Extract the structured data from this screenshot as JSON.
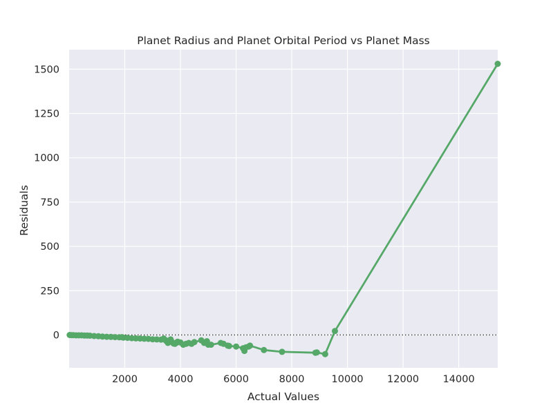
{
  "chart_data": {
    "type": "line",
    "title": "Planet Radius and Planet Orbital Period vs Planet Mass",
    "xlabel": "Actual Values",
    "ylabel": "Residuals",
    "xlim": [
      0,
      15400
    ],
    "ylim": [
      -185,
      1610
    ],
    "x_ticks": [
      2000,
      4000,
      6000,
      8000,
      10000,
      12000,
      14000
    ],
    "y_ticks": [
      0,
      250,
      500,
      750,
      1000,
      1250,
      1500
    ],
    "x_tick_labels": [
      "2000",
      "4000",
      "6000",
      "8000",
      "10000",
      "12000",
      "14000"
    ],
    "y_tick_labels": [
      "0",
      "250",
      "500",
      "750",
      "1000",
      "1250",
      "1500"
    ],
    "grid": true,
    "reference_line": {
      "y": 0,
      "style": "dotted"
    },
    "colors": {
      "series": "#55a868",
      "background": "#eaeaf2",
      "grid": "#ffffff",
      "reference": "#333333"
    },
    "series": [
      {
        "x": [
          20,
          80,
          150,
          250,
          350,
          450,
          550,
          650,
          750,
          900,
          1050,
          1200,
          1350,
          1500,
          1650,
          1800,
          1900,
          1950,
          2100,
          2250,
          2400,
          2550,
          2700,
          2850,
          3000,
          3150,
          3300,
          3400,
          3450,
          3500,
          3550,
          3600,
          3650,
          3700,
          3750,
          3800,
          3850,
          3900,
          4000,
          4100,
          4200,
          4300,
          4400,
          4500,
          4750,
          4850,
          4950,
          5000,
          5100,
          5450,
          5550,
          5700,
          5750,
          6000,
          6250,
          6300,
          6350,
          6450,
          6500,
          7000,
          7650,
          8850,
          8900,
          9200,
          9550,
          15400
        ],
        "y": [
          0,
          -1,
          -1,
          -2,
          -2,
          -2,
          -3,
          -3,
          -4,
          -6,
          -7,
          -9,
          -10,
          -11,
          -12,
          -13,
          -12,
          -15,
          -16,
          -18,
          -19,
          -20,
          -21,
          -22,
          -24,
          -25,
          -26,
          -20,
          -28,
          -35,
          -45,
          -30,
          -25,
          -40,
          -48,
          -50,
          -45,
          -38,
          -42,
          -55,
          -50,
          -45,
          -50,
          -40,
          -30,
          -45,
          -35,
          -55,
          -55,
          -45,
          -50,
          -60,
          -62,
          -65,
          -75,
          -90,
          -70,
          -65,
          -60,
          -85,
          -95,
          -100,
          -98,
          -108,
          22,
          1530
        ]
      }
    ]
  }
}
